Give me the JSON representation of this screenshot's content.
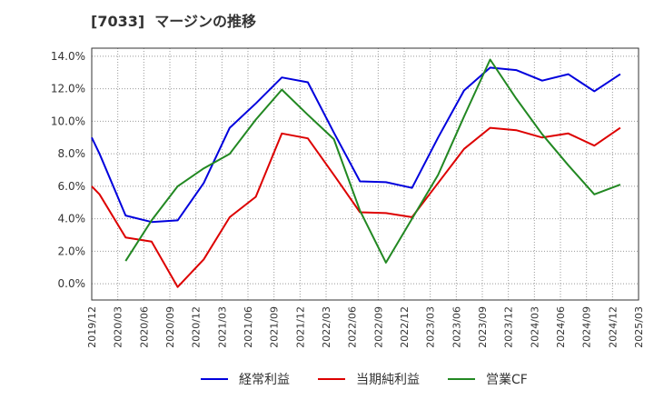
{
  "chart_data": {
    "type": "line",
    "title": "[7033]  マージンの推移",
    "x": [
      "2019/12",
      "2020/03",
      "2020/06",
      "2020/09",
      "2020/12",
      "2021/03",
      "2021/06",
      "2021/09",
      "2021/12",
      "2022/03",
      "2022/06",
      "2022/09",
      "2022/12",
      "2023/03",
      "2023/06",
      "2023/09",
      "2023/12",
      "2024/03",
      "2024/06",
      "2024/09",
      "2024/12",
      "2025/03"
    ],
    "ylim": [
      -1.0,
      14.5
    ],
    "yticks": [
      "14.0%",
      "12.0%",
      "10.0%",
      "8.0%",
      "6.0%",
      "4.0%",
      "2.0%",
      "0.0%"
    ],
    "ytick_values": [
      14,
      12,
      10,
      8,
      6,
      4,
      2,
      0
    ],
    "grid": true,
    "legend_position": "bottom",
    "series": [
      {
        "name": "経常利益",
        "color": "#0000dd",
        "points": [
          [
            0,
            9.0
          ],
          [
            0.3,
            8.0
          ],
          [
            1.3,
            4.2
          ],
          [
            2.3,
            3.8
          ],
          [
            3.3,
            3.9
          ],
          [
            4.3,
            6.2
          ],
          [
            5.3,
            9.6
          ],
          [
            6.3,
            11.1
          ],
          [
            7.3,
            12.7
          ],
          [
            8.3,
            12.4
          ],
          [
            9.3,
            9.3
          ],
          [
            10.3,
            6.3
          ],
          [
            11.3,
            6.25
          ],
          [
            12.3,
            5.9
          ],
          [
            13.3,
            9.0
          ],
          [
            14.3,
            11.9
          ],
          [
            15.3,
            13.3
          ],
          [
            16.3,
            13.15
          ],
          [
            17.3,
            12.5
          ],
          [
            18.3,
            12.9
          ],
          [
            19.3,
            11.85
          ],
          [
            20.3,
            12.9
          ]
        ]
      },
      {
        "name": "当期純利益",
        "color": "#dd0000",
        "points": [
          [
            0,
            6.0
          ],
          [
            0.3,
            5.5
          ],
          [
            1.3,
            2.85
          ],
          [
            2.3,
            2.6
          ],
          [
            3.3,
            -0.2
          ],
          [
            4.3,
            1.5
          ],
          [
            5.3,
            4.1
          ],
          [
            6.3,
            5.35
          ],
          [
            7.3,
            9.25
          ],
          [
            8.3,
            8.95
          ],
          [
            9.3,
            6.7
          ],
          [
            10.3,
            4.4
          ],
          [
            11.3,
            4.35
          ],
          [
            12.3,
            4.1
          ],
          [
            13.3,
            6.2
          ],
          [
            14.3,
            8.3
          ],
          [
            15.3,
            9.6
          ],
          [
            16.3,
            9.45
          ],
          [
            17.3,
            9.0
          ],
          [
            18.3,
            9.25
          ],
          [
            19.3,
            8.5
          ],
          [
            20.3,
            9.6
          ]
        ]
      },
      {
        "name": "営業CF",
        "color": "#228822",
        "points": [
          [
            1.3,
            1.4
          ],
          [
            2.3,
            3.9
          ],
          [
            3.3,
            6.0
          ],
          [
            4.3,
            7.1
          ],
          [
            5.3,
            8.0
          ],
          [
            6.3,
            10.1
          ],
          [
            7.3,
            11.95
          ],
          [
            8.3,
            10.4
          ],
          [
            9.3,
            8.9
          ],
          [
            10.3,
            4.5
          ],
          [
            11.3,
            1.3
          ],
          [
            12.3,
            4.0
          ],
          [
            13.3,
            6.7
          ],
          [
            14.3,
            10.3
          ],
          [
            15.3,
            13.8
          ],
          [
            16.3,
            11.4
          ],
          [
            17.3,
            9.2
          ],
          [
            18.3,
            7.3
          ],
          [
            19.3,
            5.5
          ],
          [
            20.3,
            6.1
          ]
        ]
      }
    ]
  }
}
